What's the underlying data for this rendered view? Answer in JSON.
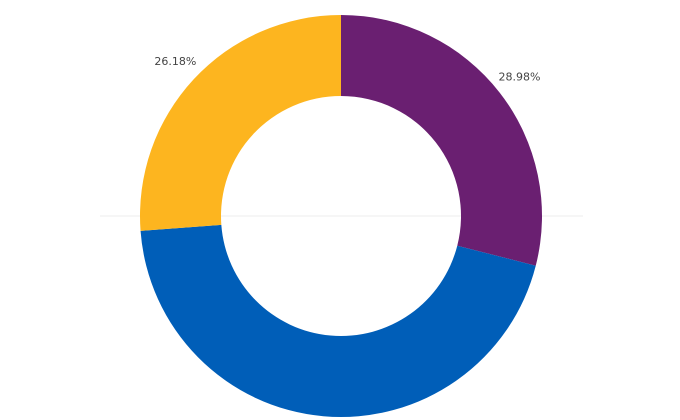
{
  "chart_data": {
    "type": "donut",
    "values": [
      28.98,
      44.84,
      26.18
    ],
    "value_labels": [
      "28.98%",
      null,
      "26.18%"
    ],
    "colors": [
      "#6a1f71",
      "#005eb8",
      "#fdb51f"
    ]
  }
}
